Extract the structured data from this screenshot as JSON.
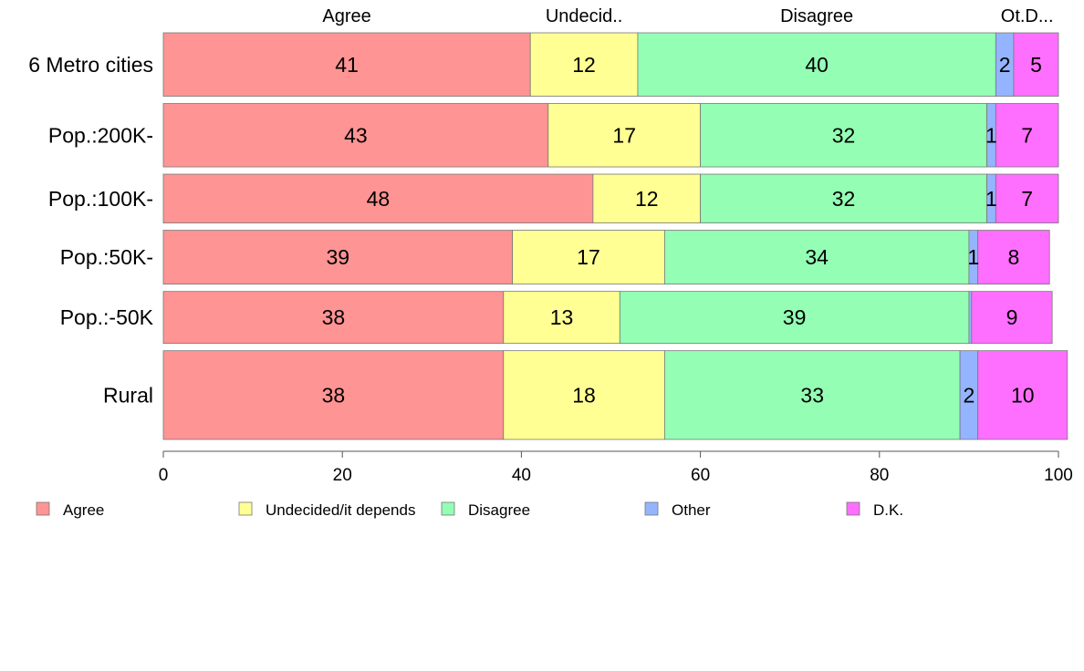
{
  "chart_data": {
    "type": "bar",
    "orientation": "horizontal",
    "stacked": true,
    "categories": [
      "6 Metro cities",
      "Pop.:200K-",
      "Pop.:100K-",
      "Pop.:50K-",
      "Pop.:-50K",
      "Rural"
    ],
    "series": [
      {
        "name": "Agree",
        "color": "#ff9494",
        "values": [
          41,
          43,
          48,
          39,
          38,
          38
        ]
      },
      {
        "name": "Undecided/it depends",
        "color": "#ffff94",
        "values": [
          12,
          17,
          12,
          17,
          13,
          18
        ]
      },
      {
        "name": "Disagree",
        "color": "#94ffb4",
        "values": [
          40,
          32,
          32,
          34,
          39,
          33
        ]
      },
      {
        "name": "Other",
        "color": "#94b4ff",
        "values": [
          2,
          1,
          1,
          1,
          0.3,
          2
        ]
      },
      {
        "name": "D.K.",
        "color": "#ff6fff",
        "values": [
          5,
          7,
          7,
          8,
          9,
          10
        ]
      }
    ],
    "top_labels": [
      "Agree",
      "Undecid..",
      "Disagree",
      "Ot.D..."
    ],
    "row_weights": [
      1.0,
      1.0,
      0.77,
      0.85,
      0.82,
      1.4
    ],
    "xlim": [
      0,
      100
    ],
    "xticks": [
      0,
      20,
      40,
      60,
      80,
      100
    ],
    "grid": false,
    "legend_placement": "bottom"
  }
}
